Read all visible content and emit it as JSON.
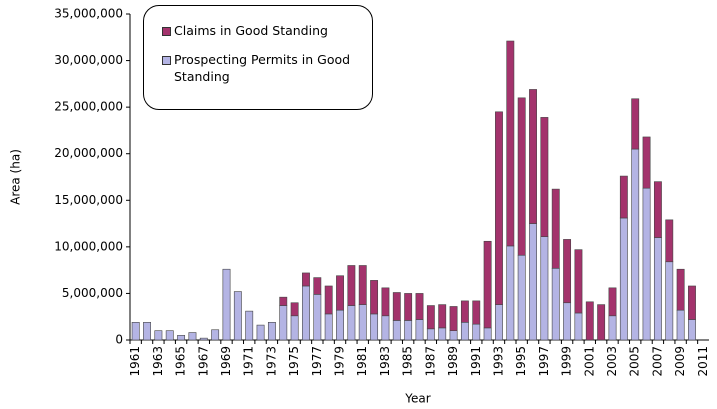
{
  "chart_data": {
    "type": "stacked_bar",
    "x_label": "Year",
    "y_label": "Area (ha)",
    "categories": [
      "1961",
      null,
      "1963",
      null,
      "1965",
      null,
      "1967",
      null,
      "1969",
      null,
      "1971",
      null,
      "1973",
      null,
      "1975",
      null,
      "1977",
      null,
      "1979",
      null,
      "1981",
      null,
      "1983",
      null,
      "1985",
      null,
      "1987",
      null,
      "1989",
      null,
      "1991",
      null,
      "1993",
      null,
      "1995",
      null,
      "1997",
      null,
      "1999",
      null,
      "2001",
      null,
      "2003",
      null,
      "2005",
      null,
      "2007",
      null,
      "2009",
      null,
      "2011"
    ],
    "series": [
      {
        "name": "Prospecting Permits in Good Standing",
        "color": "#b4b4e4",
        "values": [
          1900000,
          1900000,
          1000000,
          1000000,
          500000,
          800000,
          200000,
          1100000,
          7600000,
          5200000,
          3100000,
          1600000,
          1900000,
          3700000,
          2600000,
          5800000,
          4900000,
          2800000,
          3200000,
          3700000,
          3800000,
          2800000,
          2600000,
          2100000,
          2100000,
          2200000,
          1200000,
          1300000,
          1000000,
          1900000,
          1700000,
          1300000,
          3800000,
          10100000,
          9100000,
          12500000,
          11100000,
          7700000,
          4000000,
          2900000,
          0,
          0,
          2600000,
          13100000,
          20500000,
          16300000,
          11000000,
          8400000,
          3200000,
          2200000,
          0
        ]
      },
      {
        "name": "Claims in Good Standing",
        "color": "#a3336c",
        "values": [
          0,
          0,
          0,
          0,
          0,
          0,
          0,
          0,
          0,
          0,
          0,
          0,
          0,
          900000,
          1400000,
          1400000,
          1800000,
          3000000,
          3700000,
          4300000,
          4200000,
          3600000,
          3000000,
          3000000,
          2900000,
          2800000,
          2500000,
          2500000,
          2600000,
          2300000,
          2500000,
          9300000,
          20700000,
          22000000,
          16900000,
          14400000,
          12800000,
          8500000,
          6800000,
          6800000,
          4100000,
          3800000,
          3000000,
          4500000,
          5400000,
          5500000,
          6000000,
          4500000,
          4400000,
          3600000,
          0
        ]
      }
    ],
    "ylim": [
      0,
      35000000
    ],
    "yticks": [
      0,
      {
        "value": 5000000,
        "label": "5,000,000"
      },
      {
        "value": 10000000,
        "label": "10,000,000"
      },
      {
        "value": 15000000,
        "label": "15,000,000"
      },
      {
        "value": 20000000,
        "label": "20,000,000"
      },
      {
        "value": 25000000,
        "label": "25,000,000"
      },
      {
        "value": 30000000,
        "label": "30,000,000"
      },
      {
        "value": 35000000,
        "label": "35,000,000"
      }
    ],
    "grid": false,
    "legend": "top-left"
  }
}
